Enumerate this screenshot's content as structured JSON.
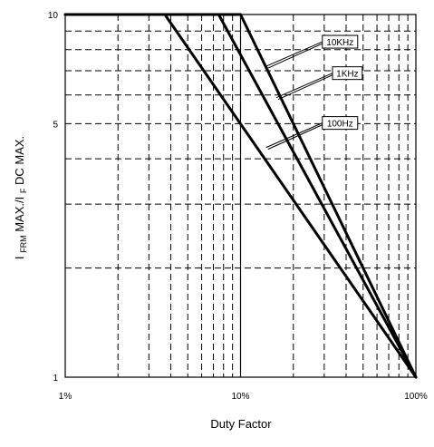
{
  "chart_data": {
    "type": "line",
    "title": "",
    "xlabel": "Duty Factor",
    "ylabel": {
      "parts": [
        {
          "text": "I",
          "sub": false
        },
        {
          "text": "FRM",
          "sub": true
        },
        {
          "text": " MAX./I",
          "sub": false
        },
        {
          "text": "F",
          "sub": true
        },
        {
          "text": " DC MAX.",
          "sub": false
        }
      ]
    },
    "x_scale": "log",
    "y_scale": "log",
    "xlim_percent": [
      1,
      100
    ],
    "ylim": [
      1,
      10
    ],
    "x_tick_labels": [
      "1%",
      "10%",
      "100%"
    ],
    "x_tick_values_percent": [
      1,
      10,
      100
    ],
    "y_tick_labels": [
      "1",
      "5",
      "10"
    ],
    "y_tick_values": [
      1,
      5,
      10
    ],
    "grid": true,
    "legend": "inline callout labels",
    "series": [
      {
        "name": "10KHz",
        "x_percent": [
          1,
          10,
          100
        ],
        "y": [
          10,
          10,
          1
        ],
        "label_anchor_x_percent": 14,
        "label_anchor_y": 7.2
      },
      {
        "name": "1KHz",
        "x_percent": [
          1,
          7.5,
          100
        ],
        "y": [
          10,
          10,
          1
        ],
        "label_anchor_x_percent": 16,
        "label_anchor_y": 5.9
      },
      {
        "name": "100Hz",
        "x_percent": [
          1,
          3.7,
          100
        ],
        "y": [
          10,
          10,
          1
        ],
        "label_anchor_x_percent": 14,
        "label_anchor_y": 4.3
      }
    ],
    "colors": {
      "line": "#000000",
      "grid": "#000000",
      "frame": "#000000",
      "background": "#ffffff"
    }
  }
}
